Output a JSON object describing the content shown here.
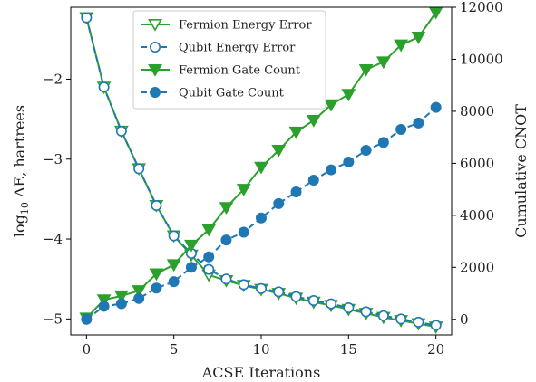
{
  "chart_data": {
    "type": "line",
    "x_label": "ACSE Iterations",
    "y_left_label_prefix": "log",
    "y_left_label_sub": "10",
    "y_left_label_rest": " ΔE, hartrees",
    "y_right_label": "Cumulative CNOT",
    "x_range": [
      -0.9,
      20.9
    ],
    "x_ticks": [
      0,
      5,
      10,
      15,
      20
    ],
    "x_tick_labels": [
      "0",
      "5",
      "10",
      "15",
      "20"
    ],
    "y_left_range": [
      -5.2,
      -1.1
    ],
    "y_left_ticks": [
      -5,
      -4,
      -3,
      -2
    ],
    "y_left_tick_labels": [
      "−5",
      "−4",
      "−3",
      "−2"
    ],
    "y_right_range": [
      -600,
      12000
    ],
    "y_right_ticks": [
      0,
      2000,
      4000,
      6000,
      8000,
      10000,
      12000
    ],
    "y_right_tick_labels": [
      "0",
      "2000",
      "4000",
      "6000",
      "8000",
      "10000",
      "12000"
    ],
    "x": [
      0,
      1,
      2,
      3,
      4,
      5,
      6,
      7,
      8,
      9,
      10,
      11,
      12,
      13,
      14,
      15,
      16,
      17,
      18,
      19,
      20
    ],
    "legend_position": "upper-center",
    "series": [
      {
        "name": "Fermion Energy Error",
        "axis": "left",
        "color": "#2ca02c",
        "line": "solid",
        "marker": "triangle-down-open",
        "values": [
          -1.23,
          -2.1,
          -2.65,
          -3.12,
          -3.58,
          -3.96,
          -4.2,
          -4.45,
          -4.52,
          -4.58,
          -4.63,
          -4.68,
          -4.74,
          -4.79,
          -4.83,
          -4.88,
          -4.93,
          -4.98,
          -5.02,
          -5.06,
          -5.1
        ]
      },
      {
        "name": "Qubit Energy Error",
        "axis": "left",
        "color": "#1f77b4",
        "line": "dashed",
        "marker": "circle-open",
        "values": [
          -1.23,
          -2.1,
          -2.65,
          -3.12,
          -3.58,
          -3.96,
          -4.18,
          -4.38,
          -4.5,
          -4.57,
          -4.62,
          -4.66,
          -4.72,
          -4.77,
          -4.81,
          -4.86,
          -4.91,
          -4.96,
          -5.0,
          -5.04,
          -5.08
        ]
      },
      {
        "name": "Fermion Gate Count",
        "axis": "right",
        "color": "#2ca02c",
        "line": "solid",
        "marker": "triangle-down-filled",
        "values": [
          50,
          750,
          900,
          1100,
          1750,
          2100,
          2850,
          3450,
          4300,
          5000,
          5850,
          6500,
          7200,
          7650,
          8250,
          8650,
          9600,
          9900,
          10550,
          10850,
          11800
        ]
      },
      {
        "name": "Qubit Gate Count",
        "axis": "right",
        "color": "#1f77b4",
        "line": "dashed",
        "marker": "circle-filled",
        "values": [
          0,
          500,
          600,
          800,
          1200,
          1450,
          2000,
          2400,
          3050,
          3350,
          3900,
          4450,
          4900,
          5350,
          5750,
          6050,
          6500,
          6800,
          7300,
          7550,
          8150
        ]
      }
    ]
  }
}
